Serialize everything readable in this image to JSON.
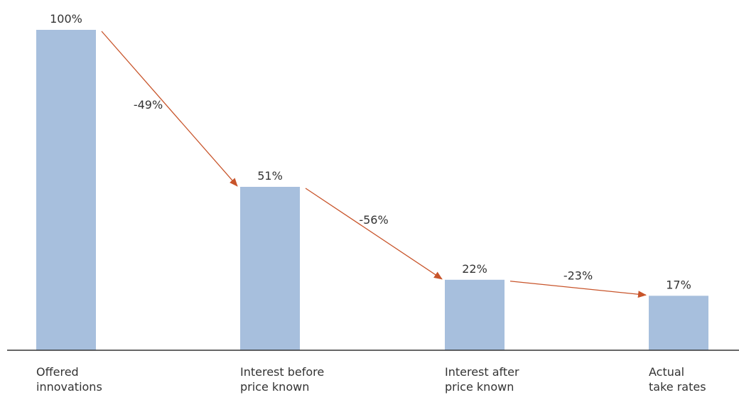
{
  "chart_data": {
    "type": "bar",
    "title": "",
    "xlabel": "",
    "ylabel": "",
    "ylim": [
      0,
      100
    ],
    "grid": false,
    "legend": "none",
    "bar_color": "#a7bfdd",
    "arrow_color": "#c8542a",
    "categories": [
      {
        "line1": "Offered",
        "line2": "innovations"
      },
      {
        "line1": "Interest before",
        "line2": "price known"
      },
      {
        "line1": "Interest after",
        "line2": "price known"
      },
      {
        "line1": "Actual",
        "line2": "take rates"
      }
    ],
    "values": [
      100,
      51,
      22,
      17
    ],
    "value_labels": [
      "100%",
      "51%",
      "22%",
      "17%"
    ],
    "changes": [
      "-49%",
      "-56%",
      "-23%"
    ]
  }
}
